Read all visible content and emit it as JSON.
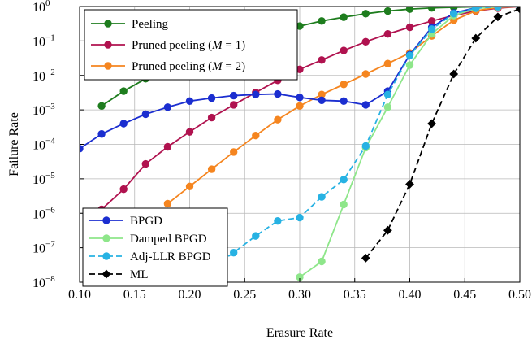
{
  "chart_data": {
    "type": "line",
    "xlabel": "Erasure Rate",
    "ylabel": "Failure Rate",
    "xlim": [
      0.1,
      0.5
    ],
    "ylim_log10": [
      -8,
      0
    ],
    "y_scale": "log",
    "grid": true,
    "x_ticks": [
      "0.10",
      "0.15",
      "0.20",
      "0.25",
      "0.30",
      "0.35",
      "0.40",
      "0.45",
      "0.50"
    ],
    "y_ticks": [
      {
        "base": "10",
        "exp": "0"
      },
      {
        "base": "10",
        "exp": "−1"
      },
      {
        "base": "10",
        "exp": "−2"
      },
      {
        "base": "10",
        "exp": "−3"
      },
      {
        "base": "10",
        "exp": "−4"
      },
      {
        "base": "10",
        "exp": "−5"
      },
      {
        "base": "10",
        "exp": "−6"
      },
      {
        "base": "10",
        "exp": "−7"
      },
      {
        "base": "10",
        "exp": "−8"
      }
    ],
    "legend_top": [
      {
        "label": "Peeling",
        "color": "#1e7d1e",
        "dash": "",
        "marker": "circle"
      },
      {
        "label_main": "Pruned peeling (",
        "label_var": "M",
        "label_eq": " = 1)",
        "color": "#b0124f",
        "dash": "",
        "marker": "circle"
      },
      {
        "label_main": "Pruned peeling (",
        "label_var": "M",
        "label_eq": " = 2)",
        "color": "#f5851f",
        "dash": "",
        "marker": "circle"
      }
    ],
    "legend_bottom": [
      {
        "label": "BPGD",
        "color": "#1b2ed0",
        "dash": "",
        "marker": "circle"
      },
      {
        "label": "Damped BPGD",
        "color": "#8ee68a",
        "dash": "",
        "marker": "circle"
      },
      {
        "label": "Adj-LLR BPGD",
        "color": "#27b2e3",
        "dash": "7,4",
        "marker": "circle"
      },
      {
        "label": "ML",
        "color": "#000000",
        "dash": "7,4",
        "marker": "diamond"
      }
    ],
    "series": [
      {
        "name": "Peeling",
        "color": "#1e7d1e",
        "dash": "",
        "marker": "circle",
        "points": [
          [
            0.12,
            0.0013
          ],
          [
            0.14,
            0.0035
          ],
          [
            0.16,
            0.008
          ],
          [
            0.18,
            0.015
          ],
          [
            0.2,
            0.026
          ],
          [
            0.22,
            0.045
          ],
          [
            0.24,
            0.075
          ],
          [
            0.26,
            0.12
          ],
          [
            0.28,
            0.18
          ],
          [
            0.3,
            0.27
          ],
          [
            0.32,
            0.38
          ],
          [
            0.34,
            0.49
          ],
          [
            0.36,
            0.62
          ],
          [
            0.38,
            0.74
          ],
          [
            0.4,
            0.84
          ],
          [
            0.42,
            0.91
          ],
          [
            0.44,
            0.95
          ],
          [
            0.46,
            0.98
          ],
          [
            0.48,
            0.99
          ],
          [
            0.5,
            1.0
          ]
        ]
      },
      {
        "name": "Pruned peeling (M = 1)",
        "color": "#b0124f",
        "dash": "",
        "marker": "circle",
        "points": [
          [
            0.12,
            1.3e-06
          ],
          [
            0.14,
            5e-06
          ],
          [
            0.16,
            2.7e-05
          ],
          [
            0.18,
            8.5e-05
          ],
          [
            0.2,
            0.00023
          ],
          [
            0.22,
            0.0006
          ],
          [
            0.24,
            0.0014
          ],
          [
            0.26,
            0.0032
          ],
          [
            0.28,
            0.0072
          ],
          [
            0.3,
            0.015
          ],
          [
            0.32,
            0.028
          ],
          [
            0.34,
            0.053
          ],
          [
            0.36,
            0.095
          ],
          [
            0.38,
            0.16
          ],
          [
            0.4,
            0.25
          ],
          [
            0.42,
            0.38
          ],
          [
            0.44,
            0.55
          ],
          [
            0.46,
            0.74
          ],
          [
            0.48,
            0.9
          ],
          [
            0.5,
            1.0
          ]
        ]
      },
      {
        "name": "Pruned peeling (M = 2)",
        "color": "#f5851f",
        "dash": "",
        "marker": "circle",
        "points": [
          [
            0.18,
            1.9e-06
          ],
          [
            0.2,
            6e-06
          ],
          [
            0.22,
            1.9e-05
          ],
          [
            0.24,
            6e-05
          ],
          [
            0.26,
            0.00018
          ],
          [
            0.28,
            0.00052
          ],
          [
            0.3,
            0.0013
          ],
          [
            0.32,
            0.0028
          ],
          [
            0.34,
            0.0055
          ],
          [
            0.36,
            0.011
          ],
          [
            0.38,
            0.022
          ],
          [
            0.4,
            0.045
          ],
          [
            0.42,
            0.14
          ],
          [
            0.44,
            0.4
          ],
          [
            0.46,
            0.75
          ],
          [
            0.48,
            0.95
          ],
          [
            0.5,
            1.0
          ]
        ]
      },
      {
        "name": "BPGD",
        "color": "#1b2ed0",
        "dash": "",
        "marker": "circle",
        "points": [
          [
            0.1,
            7.5e-05
          ],
          [
            0.12,
            0.0002
          ],
          [
            0.14,
            0.0004
          ],
          [
            0.16,
            0.00075
          ],
          [
            0.18,
            0.0012
          ],
          [
            0.2,
            0.0018
          ],
          [
            0.22,
            0.0022
          ],
          [
            0.24,
            0.0026
          ],
          [
            0.26,
            0.0028
          ],
          [
            0.28,
            0.0029
          ],
          [
            0.3,
            0.0023
          ],
          [
            0.32,
            0.0019
          ],
          [
            0.34,
            0.0018
          ],
          [
            0.36,
            0.0014
          ],
          [
            0.38,
            0.0035
          ],
          [
            0.4,
            0.04
          ],
          [
            0.42,
            0.25
          ],
          [
            0.44,
            0.65
          ],
          [
            0.46,
            0.92
          ],
          [
            0.48,
            0.99
          ],
          [
            0.5,
            1.0
          ]
        ]
      },
      {
        "name": "Damped BPGD",
        "color": "#8ee68a",
        "dash": "",
        "marker": "circle",
        "points": [
          [
            0.3,
            1.4e-08
          ],
          [
            0.32,
            4e-08
          ],
          [
            0.34,
            1.8e-06
          ],
          [
            0.36,
            8e-05
          ],
          [
            0.38,
            0.0012
          ],
          [
            0.4,
            0.02
          ],
          [
            0.42,
            0.16
          ],
          [
            0.44,
            0.55
          ],
          [
            0.46,
            0.88
          ],
          [
            0.48,
            0.98
          ],
          [
            0.5,
            1.0
          ]
        ]
      },
      {
        "name": "Adj-LLR BPGD",
        "color": "#27b2e3",
        "dash": "7,4",
        "marker": "circle",
        "points": [
          [
            0.2,
            1.3e-08
          ],
          [
            0.22,
            2.6e-08
          ],
          [
            0.24,
            7.2e-08
          ],
          [
            0.26,
            2.2e-07
          ],
          [
            0.28,
            6e-07
          ],
          [
            0.3,
            7.5e-07
          ],
          [
            0.32,
            3e-06
          ],
          [
            0.34,
            9.5e-06
          ],
          [
            0.36,
            9e-05
          ],
          [
            0.38,
            0.0028
          ],
          [
            0.4,
            0.038
          ],
          [
            0.42,
            0.22
          ],
          [
            0.44,
            0.62
          ],
          [
            0.46,
            0.9
          ],
          [
            0.48,
            0.99
          ],
          [
            0.5,
            1.0
          ]
        ]
      },
      {
        "name": "ML",
        "color": "#000000",
        "dash": "7,4",
        "marker": "diamond",
        "points": [
          [
            0.36,
            5e-08
          ],
          [
            0.38,
            3.2e-07
          ],
          [
            0.4,
            7e-06
          ],
          [
            0.42,
            0.0004
          ],
          [
            0.44,
            0.011
          ],
          [
            0.46,
            0.12
          ],
          [
            0.48,
            0.5
          ],
          [
            0.5,
            0.85
          ]
        ]
      }
    ]
  }
}
